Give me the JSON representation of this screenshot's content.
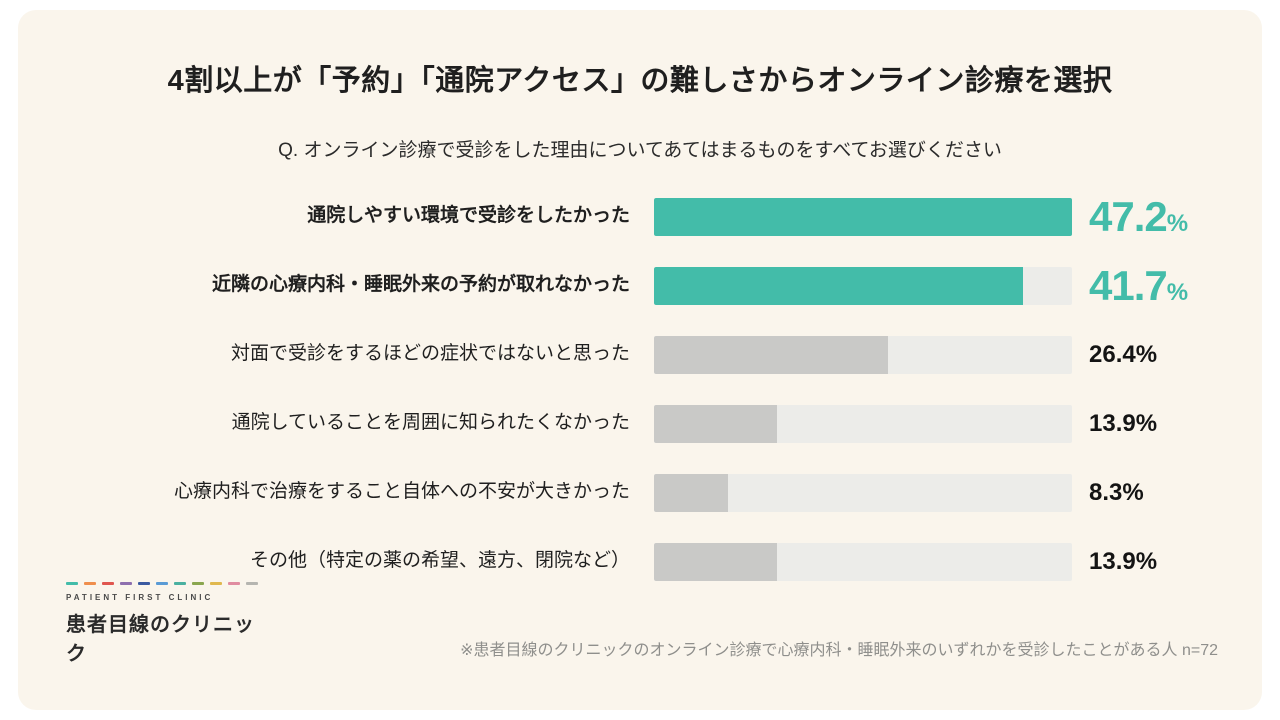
{
  "header": {
    "title": "4割以上が「予約」「通院アクセス」の難しさからオンライン診療を選択",
    "question": "Q. オンライン診療で受診をした理由についてあてはまるものをすべてお選びください"
  },
  "chart_data": {
    "type": "bar",
    "orientation": "horizontal",
    "title": "オンライン診療で受診をした理由",
    "categories": [
      "通院しやすい環境で受診をしたかった",
      "近隣の心療内科・睡眠外来の予約が取れなかった",
      "対面で受診をするほどの症状ではないと思った",
      "通院していることを周囲に知られたくなかった",
      "心療内科で治療をすること自体への不安が大きかった",
      "その他（特定の薬の希望、遠方、閉院など）"
    ],
    "values": [
      47.2,
      41.7,
      26.4,
      13.9,
      8.3,
      13.9
    ],
    "value_labels": [
      "47.2",
      "41.7",
      "26.4",
      "13.9",
      "8.3",
      "13.9"
    ],
    "unit": "%",
    "highlighted": [
      true,
      true,
      false,
      false,
      false,
      false
    ],
    "xlim": [
      0,
      47.2
    ],
    "legend": "none",
    "grid": false,
    "colors": {
      "highlight": "#43BCA9",
      "normal": "#C9C9C7",
      "track": "#ECECE9"
    }
  },
  "footer": {
    "note": "※患者目線のクリニックのオンライン診療で心療内科・睡眠外来のいずれかを受診したことがある人 n=72",
    "logo": {
      "tagline": "PATIENT FIRST CLINIC",
      "name": "患者目線のクリニック",
      "dash_colors": [
        "#43BCA9",
        "#EF8E4D",
        "#E0564F",
        "#8E6FAE",
        "#3B5AA0",
        "#5A9BD5",
        "#4AB0A0",
        "#8AA64F",
        "#E0B84E",
        "#E08CA0",
        "#B5B5B0"
      ]
    }
  }
}
